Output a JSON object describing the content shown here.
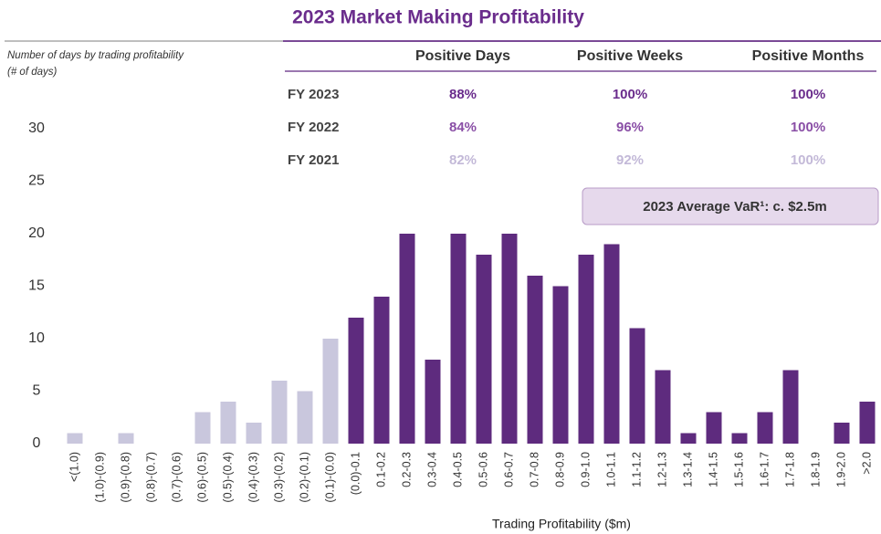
{
  "chart_data": {
    "type": "bar",
    "title": "2023 Market Making Profitability",
    "y_label": [
      "Number of days by trading profitability",
      "(# of days)"
    ],
    "x_label": "Trading Profitability ($m)",
    "annotation": "2023 Average VaR¹: c. $2.5m",
    "categories": [
      "<(1.0)",
      "(1.0)-(0.9)",
      "(0.9)-(0.8)",
      "(0.8)-(0.7)",
      "(0.7)-(0.6)",
      "(0.6)-(0.5)",
      "(0.5)-(0.4)",
      "(0.4)-(0.3)",
      "(0.3)-(0.2)",
      "(0.2)-(0.1)",
      "(0.1)-(0.0)",
      "(0.0)-0.1",
      "0.1-0.2",
      "0.2-0.3",
      "0.3-0.4",
      "0.4-0.5",
      "0.5-0.6",
      "0.6-0.7",
      "0.7-0.8",
      "0.8-0.9",
      "0.9-1.0",
      "1.0-1.1",
      "1.1-1.2",
      "1.2-1.3",
      "1.3-1.4",
      "1.4-1.5",
      "1.5-1.6",
      "1.6-1.7",
      "1.7-1.8",
      "1.8-1.9",
      "1.9-2.0",
      ">2.0"
    ],
    "values": [
      1,
      0,
      1,
      0,
      0,
      3,
      4,
      2,
      6,
      5,
      10,
      12,
      14,
      20,
      8,
      20,
      18,
      20,
      16,
      15,
      18,
      19,
      11,
      7,
      1,
      3,
      1,
      3,
      7,
      0,
      2,
      4
    ],
    "colors": [
      "#c9c7dd",
      "#c9c7dd",
      "#c9c7dd",
      "#c9c7dd",
      "#c9c7dd",
      "#c9c7dd",
      "#c9c7dd",
      "#c9c7dd",
      "#c9c7dd",
      "#c9c7dd",
      "#c9c7dd",
      "#5e2b7e",
      "#5e2b7e",
      "#5e2b7e",
      "#5e2b7e",
      "#5e2b7e",
      "#5e2b7e",
      "#5e2b7e",
      "#5e2b7e",
      "#5e2b7e",
      "#5e2b7e",
      "#5e2b7e",
      "#5e2b7e",
      "#5e2b7e",
      "#5e2b7e",
      "#5e2b7e",
      "#5e2b7e",
      "#5e2b7e",
      "#5e2b7e",
      "#5e2b7e",
      "#5e2b7e",
      "#5e2b7e"
    ],
    "ylim": [
      0,
      30
    ],
    "yticks": [
      0,
      5,
      10,
      15,
      20,
      25,
      30
    ],
    "grid": false
  },
  "table": {
    "columns": [
      "Positive Days",
      "Positive Weeks",
      "Positive Months"
    ],
    "rows": [
      [
        "FY 2023",
        "88%",
        "100%",
        "100%"
      ],
      [
        "FY 2022",
        "84%",
        "96%",
        "100%"
      ],
      [
        "FY 2021",
        "82%",
        "92%",
        "100%"
      ]
    ]
  }
}
